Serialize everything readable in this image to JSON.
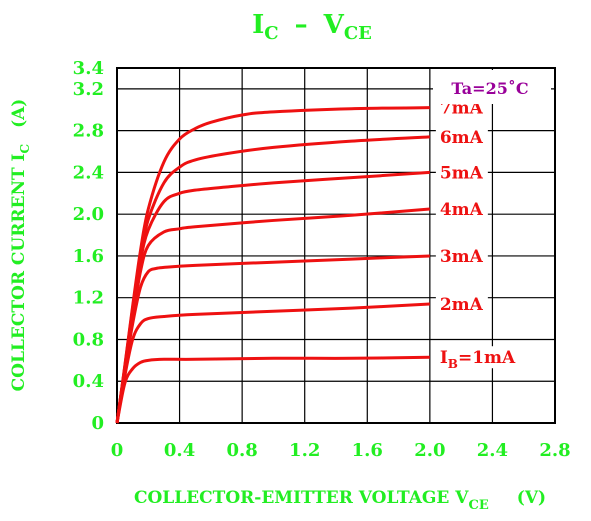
{
  "chart_data": {
    "type": "line",
    "title": {
      "main": "I",
      "sub_c": "C",
      "dash": "–",
      "v": "V",
      "sub_ce": "CE"
    },
    "xlabel": {
      "text": "COLLECTOR-EMITTER VOLTAGE V",
      "sub": "CE",
      "unit": "(V)"
    },
    "ylabel": {
      "text": "COLLECTOR CURRENT I",
      "sub": "C",
      "unit": "(A)"
    },
    "xlim": [
      0,
      2.8
    ],
    "ylim": [
      0,
      3.4
    ],
    "x_ticks": [
      "0",
      "0.4",
      "0.8",
      "1.2",
      "1.6",
      "2.0",
      "2.4",
      "2.8"
    ],
    "y_ticks": [
      "0",
      "0.4",
      "0.8",
      "1.2",
      "1.6",
      "2.0",
      "2.4",
      "2.8",
      "3.2",
      "3.4"
    ],
    "grid": true,
    "annotation": "Ta=25˚C",
    "series": [
      {
        "name": "IB=1mA",
        "label_prefix": "I",
        "label_sub": "B",
        "label_suffix": "=1mA",
        "x": [
          0,
          0.05,
          0.1,
          0.15,
          0.2,
          0.3,
          0.5,
          1.0,
          1.5,
          2.0
        ],
        "y": [
          0,
          0.38,
          0.52,
          0.58,
          0.6,
          0.61,
          0.61,
          0.62,
          0.62,
          0.63
        ]
      },
      {
        "name": "2mA",
        "label_prefix": "2mA",
        "label_sub": "",
        "label_suffix": "",
        "x": [
          0,
          0.05,
          0.1,
          0.15,
          0.2,
          0.3,
          0.5,
          1.0,
          1.5,
          2.0
        ],
        "y": [
          0,
          0.45,
          0.8,
          0.95,
          1.0,
          1.02,
          1.04,
          1.07,
          1.1,
          1.14
        ]
      },
      {
        "name": "3mA",
        "label_prefix": "3mA",
        "label_sub": "",
        "label_suffix": "",
        "x": [
          0,
          0.05,
          0.1,
          0.15,
          0.2,
          0.25,
          0.3,
          0.5,
          1.0,
          1.5,
          2.0
        ],
        "y": [
          0,
          0.5,
          0.95,
          1.3,
          1.45,
          1.48,
          1.49,
          1.51,
          1.54,
          1.57,
          1.6
        ]
      },
      {
        "name": "4mA",
        "label_prefix": "4mA",
        "label_sub": "",
        "label_suffix": "",
        "x": [
          0,
          0.05,
          0.1,
          0.15,
          0.2,
          0.3,
          0.4,
          0.5,
          1.0,
          1.5,
          2.0
        ],
        "y": [
          0,
          0.52,
          1.0,
          1.45,
          1.7,
          1.83,
          1.86,
          1.88,
          1.94,
          1.99,
          2.05
        ]
      },
      {
        "name": "5mA",
        "label_prefix": "5mA",
        "label_sub": "",
        "label_suffix": "",
        "x": [
          0,
          0.05,
          0.1,
          0.15,
          0.2,
          0.3,
          0.4,
          0.5,
          0.7,
          1.0,
          1.5,
          2.0
        ],
        "y": [
          0,
          0.53,
          1.05,
          1.55,
          1.85,
          2.12,
          2.2,
          2.23,
          2.26,
          2.3,
          2.35,
          2.4
        ]
      },
      {
        "name": "6mA",
        "label_prefix": "6mA",
        "label_sub": "",
        "label_suffix": "",
        "x": [
          0,
          0.05,
          0.1,
          0.15,
          0.2,
          0.3,
          0.4,
          0.5,
          0.7,
          1.0,
          1.5,
          2.0
        ],
        "y": [
          0,
          0.54,
          1.1,
          1.6,
          1.95,
          2.3,
          2.45,
          2.52,
          2.58,
          2.64,
          2.7,
          2.74
        ]
      },
      {
        "name": "7mA",
        "label_prefix": "7mA",
        "label_sub": "",
        "label_suffix": "",
        "x": [
          0,
          0.05,
          0.1,
          0.15,
          0.2,
          0.3,
          0.4,
          0.5,
          0.6,
          0.8,
          1.0,
          1.5,
          2.0
        ],
        "y": [
          0,
          0.55,
          1.12,
          1.65,
          2.05,
          2.5,
          2.72,
          2.82,
          2.88,
          2.95,
          2.98,
          3.01,
          3.02
        ]
      }
    ]
  },
  "colors": {
    "curve": "#ee1111",
    "axis_text": "#22ee22",
    "annotation": "#990099",
    "grid": "#000000"
  }
}
